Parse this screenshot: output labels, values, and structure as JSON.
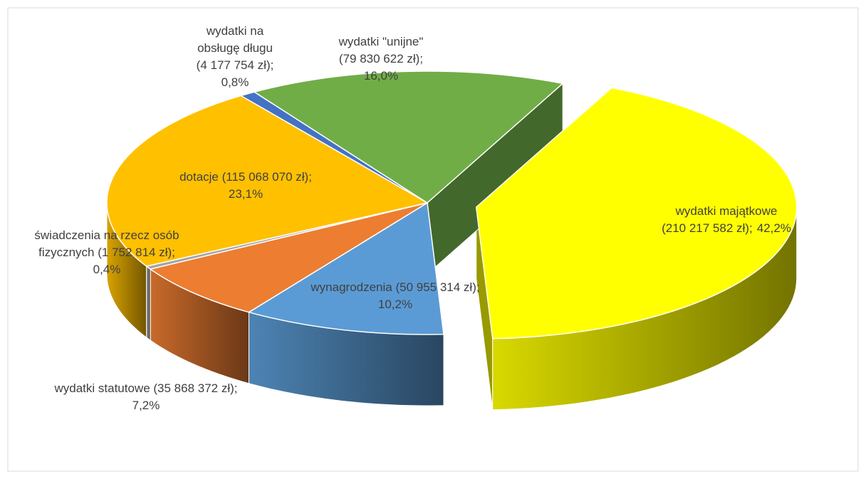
{
  "chart_data": {
    "type": "pie3d",
    "categories": [
      [
        "wydatki majątkowe",
        "(210 217 582 zł);"
      ],
      [
        "wynagrodzenia (50 955 314 zł);"
      ],
      [
        "wydatki statutowe (35 868 372 zł);"
      ],
      [
        "świadczenia na rzecz osób",
        "fizycznych (1 752 814 zł);"
      ],
      [
        "dotacje (115 068 070 zł);"
      ],
      [
        "wydatki na",
        "obsługę długu",
        "(4 177 754 zł);"
      ],
      [
        "wydatki \"unijne\"",
        "(79 830 622 zł);"
      ]
    ],
    "values": [
      42.2,
      10.2,
      7.2,
      0.4,
      23.1,
      0.8,
      16.0
    ],
    "value_labels": [
      "42,2%",
      "10,2%",
      "7,2%",
      "0,4%",
      "23,1%",
      "0,8%",
      "16,0%"
    ],
    "colors": [
      "#ffff00",
      "#5b9bd5",
      "#ed7d31",
      "#a5a5a5",
      "#ffc000",
      "#4472c4",
      "#70ad47"
    ],
    "exploded": [
      0
    ]
  }
}
